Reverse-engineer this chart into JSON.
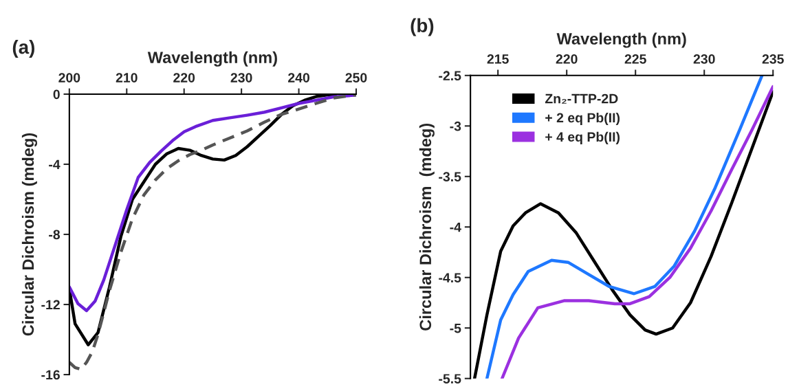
{
  "chart_data": [
    {
      "type": "line",
      "title": "(a)",
      "xlabel": "Wavelength (nm)",
      "ylabel": "Circular Dichroism (mdeg)",
      "xlim": [
        200,
        250
      ],
      "xticks": [
        200,
        210,
        220,
        230,
        240,
        250
      ],
      "ylim": [
        -16,
        0
      ],
      "yticks": [
        -16,
        -12,
        -8,
        -4,
        0
      ],
      "legend": false,
      "series": [
        {
          "color": "#000000",
          "line_style": "solid",
          "x": [
            200,
            201,
            203.3,
            205,
            207,
            209,
            211,
            213,
            215,
            217,
            219,
            221,
            223,
            225,
            227,
            229,
            231,
            233,
            235,
            237,
            239,
            241,
            243,
            245,
            246.5
          ],
          "values": [
            -11.1,
            -13.1,
            -14.3,
            -13.6,
            -11,
            -8.1,
            -6,
            -5,
            -4,
            -3.4,
            -3.1,
            -3.2,
            -3.5,
            -3.7,
            -3.76,
            -3.5,
            -3.0,
            -2.4,
            -1.8,
            -1.15,
            -0.66,
            -0.35,
            -0.14,
            -0.04,
            0
          ]
        },
        {
          "color": "#6a1fd8",
          "line_style": "solid",
          "x": [
            200,
            201.5,
            203,
            204.5,
            206,
            208,
            210,
            212,
            214,
            216,
            218,
            220,
            222,
            225,
            228,
            231,
            234,
            237,
            240,
            243,
            246,
            250
          ],
          "values": [
            -11,
            -11.95,
            -12.35,
            -11.8,
            -10.6,
            -8.6,
            -6.6,
            -4.75,
            -3.9,
            -3.25,
            -2.65,
            -2.15,
            -1.85,
            -1.5,
            -1.35,
            -1.2,
            -1.03,
            -0.78,
            -0.53,
            -0.35,
            -0.16,
            -0.05
          ]
        },
        {
          "color": "#555555",
          "line_style": "dashed",
          "x": [
            200,
            201,
            202,
            203,
            204,
            205,
            207,
            209,
            211,
            213,
            215,
            217,
            219,
            221,
            223,
            225,
            228,
            231,
            234,
            237,
            240,
            243,
            246,
            250
          ],
          "values": [
            -15.3,
            -15.6,
            -15.7,
            -15.3,
            -14.7,
            -13.7,
            -11.2,
            -9,
            -7.1,
            -5.75,
            -4.9,
            -4.25,
            -3.8,
            -3.45,
            -3.2,
            -2.9,
            -2.5,
            -2.1,
            -1.6,
            -1.15,
            -0.85,
            -0.53,
            -0.22,
            -0.04
          ]
        }
      ]
    },
    {
      "type": "line",
      "title": "(b)",
      "xlabel": "Wavelength (nm)",
      "ylabel": "Circular Dichroism  (mdeg)",
      "xlim": [
        213,
        235
      ],
      "xticks": [
        215,
        220,
        225,
        230,
        235
      ],
      "ylim": [
        -5.5,
        -2.5
      ],
      "yticks": [
        -5.5,
        -5,
        -4.5,
        -4,
        -3.5,
        -3,
        -2.5
      ],
      "legend": "top left",
      "series": [
        {
          "name": "Zn₂-TTP-2D",
          "color": "#000000",
          "line_style": "solid",
          "x": [
            213.3,
            214.2,
            215.2,
            216.1,
            217,
            218.1,
            219.4,
            220.7,
            222,
            223.3,
            224.6,
            225.7,
            226.5,
            227.7,
            229,
            230.5,
            232,
            233.5,
            235
          ],
          "values": [
            -5.5,
            -4.87,
            -4.24,
            -3.99,
            -3.86,
            -3.77,
            -3.86,
            -4.06,
            -4.34,
            -4.62,
            -4.87,
            -5.02,
            -5.06,
            -5.0,
            -4.75,
            -4.29,
            -3.76,
            -3.21,
            -2.66
          ]
        },
        {
          "name": "+ 2 eq Pb(II)",
          "color": "#1e78ff",
          "line_style": "solid",
          "x": [
            214.2,
            215.2,
            216.1,
            217.2,
            218.9,
            220.1,
            221.6,
            223.1,
            224.9,
            226.4,
            227.8,
            229.3,
            230.8,
            232.6,
            234.2
          ],
          "values": [
            -5.5,
            -4.92,
            -4.67,
            -4.44,
            -4.33,
            -4.35,
            -4.47,
            -4.59,
            -4.66,
            -4.59,
            -4.39,
            -4.04,
            -3.61,
            -3.03,
            -2.5
          ]
        },
        {
          "name": "+ 4 eq Pb(II)",
          "color": "#9b30e0",
          "line_style": "solid",
          "x": [
            215.3,
            216.5,
            217.9,
            219.8,
            221.6,
            223.5,
            224.6,
            226,
            227.5,
            229,
            230.5,
            232,
            233.5,
            235
          ],
          "values": [
            -5.5,
            -5.1,
            -4.8,
            -4.73,
            -4.73,
            -4.76,
            -4.76,
            -4.69,
            -4.5,
            -4.21,
            -3.84,
            -3.43,
            -3.03,
            -2.61
          ]
        }
      ]
    }
  ]
}
